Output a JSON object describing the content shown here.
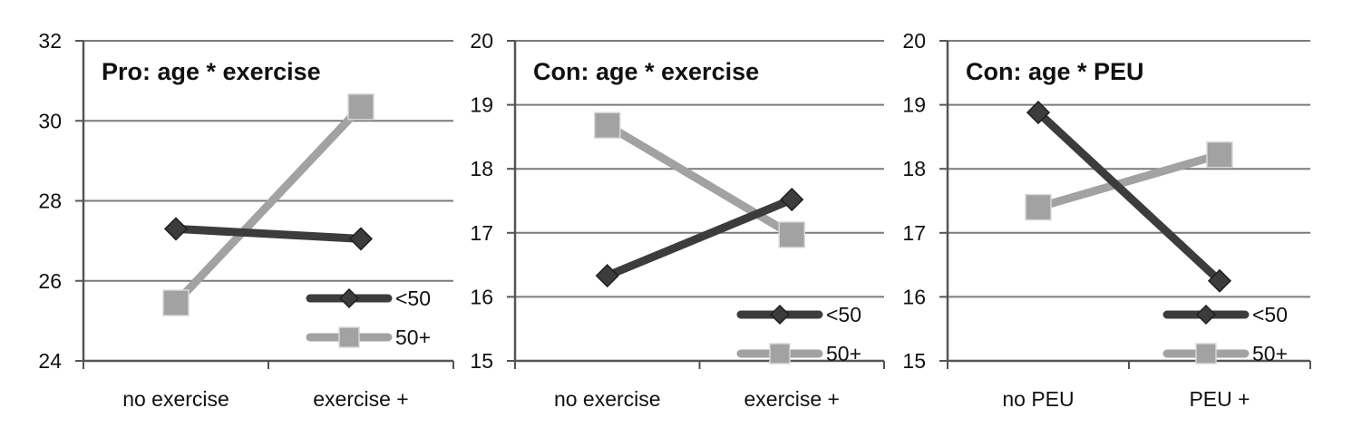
{
  "chart_data": [
    {
      "type": "line",
      "title": "Pro: age * exercise",
      "categories": [
        "no exercise",
        "exercise +"
      ],
      "ylim": [
        24,
        32
      ],
      "yticks": [
        24,
        26,
        28,
        30,
        32
      ],
      "grid": true,
      "legend_position": "bottom-right",
      "series": [
        {
          "name": "<50",
          "marker": "diamond",
          "color": "#3c3c3c",
          "values": [
            27.3,
            27.05
          ]
        },
        {
          "name": "50+",
          "marker": "square",
          "color": "#a2a2a2",
          "values": [
            25.45,
            30.35
          ]
        }
      ]
    },
    {
      "type": "line",
      "title": "Con: age * exercise",
      "categories": [
        "no exercise",
        "exercise +"
      ],
      "ylim": [
        15,
        20
      ],
      "yticks": [
        15,
        16,
        17,
        18,
        19,
        20
      ],
      "grid": true,
      "legend_position": "bottom-right",
      "series": [
        {
          "name": "<50",
          "marker": "diamond",
          "color": "#3c3c3c",
          "values": [
            16.33,
            17.52
          ]
        },
        {
          "name": "50+",
          "marker": "square",
          "color": "#a2a2a2",
          "values": [
            18.68,
            16.97
          ]
        }
      ]
    },
    {
      "type": "line",
      "title": "Con: age * PEU",
      "categories": [
        "no PEU",
        "PEU +"
      ],
      "ylim": [
        15,
        20
      ],
      "yticks": [
        15,
        16,
        17,
        18,
        19,
        20
      ],
      "grid": true,
      "legend_position": "bottom-right",
      "series": [
        {
          "name": "<50",
          "marker": "diamond",
          "color": "#3c3c3c",
          "values": [
            18.88,
            16.25
          ]
        },
        {
          "name": "50+",
          "marker": "square",
          "color": "#a2a2a2",
          "values": [
            17.4,
            18.22
          ]
        }
      ]
    }
  ]
}
